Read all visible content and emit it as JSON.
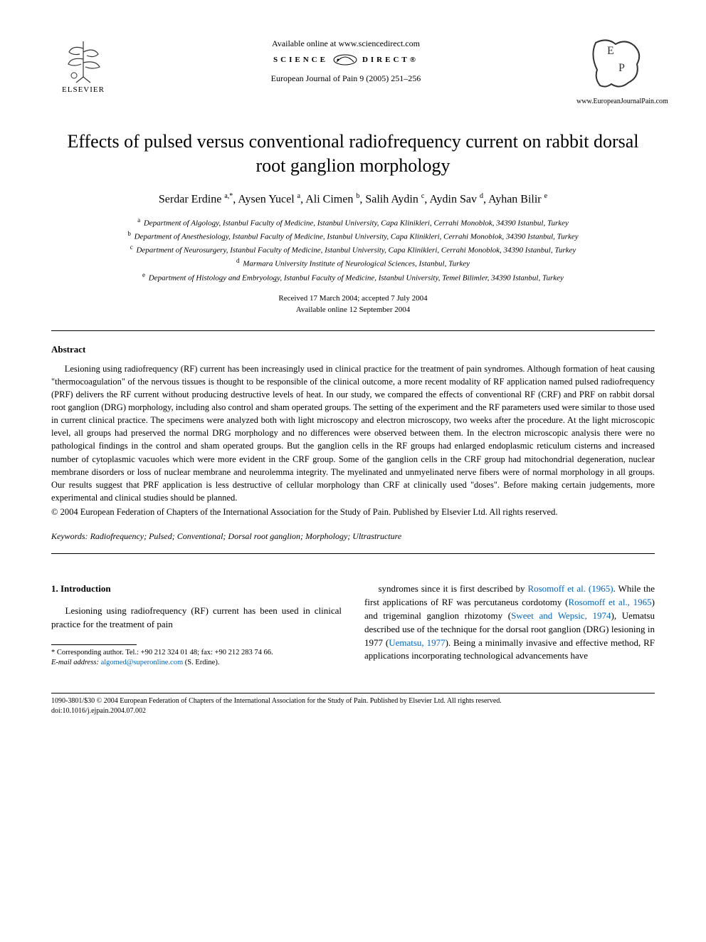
{
  "header": {
    "elsevier_label": "ELSEVIER",
    "available_online": "Available online at www.sciencedirect.com",
    "sciencedirect_left": "SCIENCE",
    "sciencedirect_right": "DIRECT®",
    "journal_reference": "European Journal of Pain 9 (2005) 251–256",
    "journal_url": "www.EuropeanJournalPain.com"
  },
  "title": "Effects of pulsed versus conventional radiofrequency current on rabbit dorsal root ganglion morphology",
  "authors_html": "Serdar Erdine <sup>a,*</sup>, Aysen Yucel <sup>a</sup>, Ali Cimen <sup>b</sup>, Salih Aydin <sup>c</sup>, Aydin Sav <sup>d</sup>, Ayhan Bilir <sup>e</sup>",
  "affiliations": [
    {
      "mark": "a",
      "text": "Department of Algology, Istanbul Faculty of Medicine, Istanbul University, Capa Klinikleri, Cerrahi Monoblok, 34390 Istanbul, Turkey"
    },
    {
      "mark": "b",
      "text": "Department of Anesthesiology, Istanbul Faculty of Medicine, Istanbul University, Capa Klinikleri, Cerrahi Monoblok, 34390 Istanbul, Turkey"
    },
    {
      "mark": "c",
      "text": "Department of Neurosurgery, Istanbul Faculty of Medicine, Istanbul University, Capa Klinikleri, Cerrahi Monoblok, 34390 Istanbul, Turkey"
    },
    {
      "mark": "d",
      "text": "Marmara University Institute of Neurological Sciences, Istanbul, Turkey"
    },
    {
      "mark": "e",
      "text": "Department of Histology and Embryology, Istanbul Faculty of Medicine, Istanbul University, Temel Bilimler, 34390 Istanbul, Turkey"
    }
  ],
  "dates": {
    "received_accepted": "Received 17 March 2004; accepted 7 July 2004",
    "available": "Available online 12 September 2004"
  },
  "abstract": {
    "heading": "Abstract",
    "text": "Lesioning using radiofrequency (RF) current has been increasingly used in clinical practice for the treatment of pain syndromes. Although formation of heat causing \"thermocoagulation\" of the nervous tissues is thought to be responsible of the clinical outcome, a more recent modality of RF application named pulsed radiofrequency (PRF) delivers the RF current without producing destructive levels of heat. In our study, we compared the effects of conventional RF (CRF) and PRF on rabbit dorsal root ganglion (DRG) morphology, including also control and sham operated groups. The setting of the experiment and the RF parameters used were similar to those used in current clinical practice. The specimens were analyzed both with light microscopy and electron microscopy, two weeks after the procedure. At the light microscopic level, all groups had preserved the normal DRG morphology and no differences were observed between them. In the electron microscopic analysis there were no pathological findings in the control and sham operated groups. But the ganglion cells in the RF groups had enlarged endoplasmic reticulum cisterns and increased number of cytoplasmic vacuoles which were more evident in the CRF group. Some of the ganglion cells in the CRF group had mitochondrial degeneration, nuclear membrane disorders or loss of nuclear membrane and neurolemma integrity. The myelinated and unmyelinated nerve fibers were of normal morphology in all groups. Our results suggest that PRF application is less destructive of cellular morphology than CRF at clinically used \"doses\". Before making certain judgements, more experimental and clinical studies should be planned.",
    "copyright": "© 2004 European Federation of Chapters of the International Association for the Study of Pain. Published by Elsevier Ltd. All rights reserved."
  },
  "keywords": {
    "label": "Keywords:",
    "text": " Radiofrequency; Pulsed; Conventional; Dorsal root ganglion; Morphology; Ultrastructure"
  },
  "intro": {
    "heading": "1. Introduction",
    "left_para": "Lesioning using radiofrequency (RF) current has been used in clinical practice for the treatment of pain",
    "right_para_pre": "syndromes since it is first described by ",
    "right_ref1": "Rosomoff et al. (1965)",
    "right_para_mid1": ". While the first applications of RF was percutaneus cordotomy (",
    "right_ref2": "Rosomoff et al., 1965",
    "right_para_mid2": ") and trigeminal ganglion rhizotomy (",
    "right_ref3": "Sweet and Wepsic, 1974",
    "right_para_mid3": "), Uematsu described use of the technique for the dorsal root ganglion (DRG) lesioning in 1977 (",
    "right_ref4": "Uematsu, 1977",
    "right_para_post": "). Being a minimally invasive and effective method, RF applications incorporating technological advancements have"
  },
  "footnotes": {
    "corresponding": "* Corresponding author. Tel.: +90 212 324 01 48; fax: +90 212 283 74 66.",
    "email_label": "E-mail address:",
    "email": "algomed@superonline.com",
    "email_owner": "(S. Erdine)."
  },
  "bottom": {
    "issn_line": "1090-3801/$30 © 2004 European Federation of Chapters of the International Association for the Study of Pain. Published by Elsevier Ltd. All rights reserved.",
    "doi": "doi:10.1016/j.ejpain.2004.07.002"
  },
  "colors": {
    "link": "#0066cc",
    "text": "#000000",
    "background": "#ffffff"
  }
}
